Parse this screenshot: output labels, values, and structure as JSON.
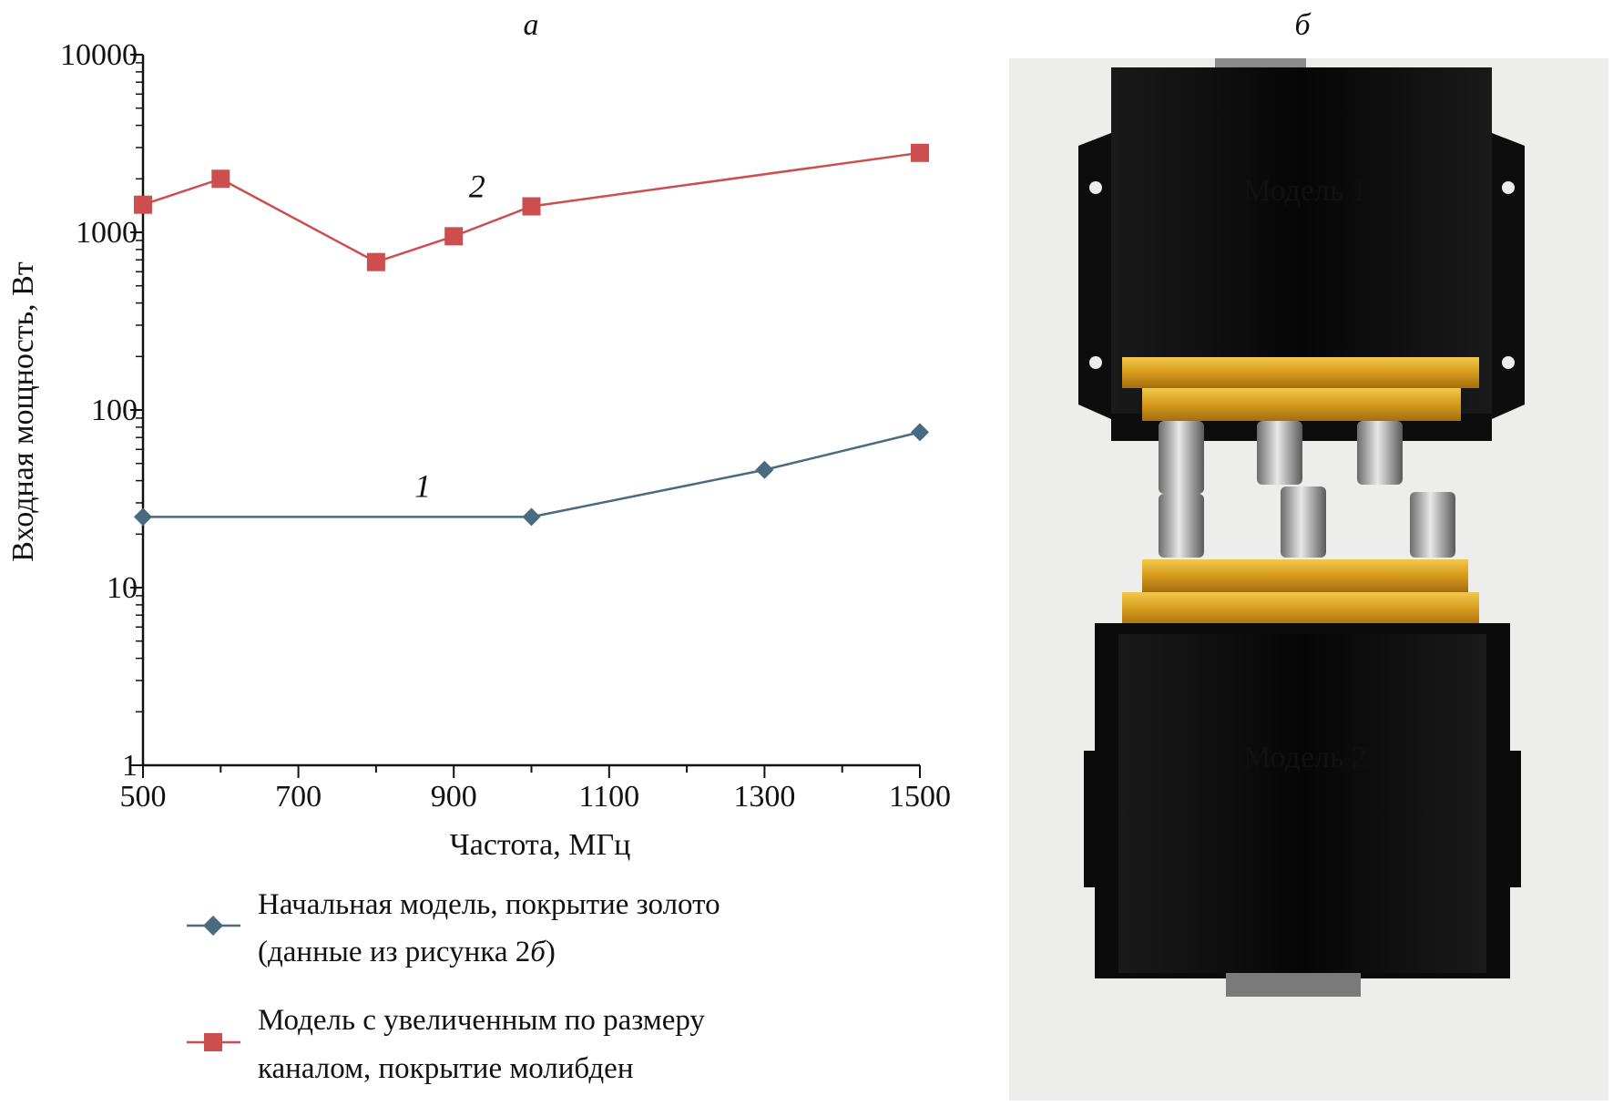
{
  "panels": {
    "left_label": "а",
    "right_label": "б"
  },
  "chart_data": {
    "type": "line",
    "x_scale": "linear",
    "y_scale": "log",
    "xlabel": "Частота, МГц",
    "ylabel": "Входная мощность, Вт",
    "xlim": [
      500,
      1500
    ],
    "ylim": [
      1,
      10000
    ],
    "x_ticks": [
      500,
      700,
      900,
      1100,
      1300,
      1500
    ],
    "x_tick_labels": [
      "500",
      "700",
      "900",
      "1100",
      "1300",
      "1500"
    ],
    "y_ticks": [
      1,
      10,
      100,
      1000,
      10000
    ],
    "y_tick_labels": [
      "1",
      "10",
      "100",
      "1000",
      "10000"
    ],
    "grid": false,
    "legend_position": "bottom",
    "series": [
      {
        "name": "Начальная модель, покрытие золото (данные из рисунка 2б)",
        "legend_lines": [
          "Начальная модель, покрытие золото",
          "(данные из рисунка 2",
          "б",
          ")"
        ],
        "curve_label": "1",
        "marker": "diamond",
        "color": "#4a6b7f",
        "x": [
          500,
          1000,
          1300,
          1500
        ],
        "y": [
          25,
          25,
          46,
          75
        ]
      },
      {
        "name": "Модель с увеличенным по размеру каналом, покрытие молибден",
        "legend_lines": [
          "Модель с увеличенным по размеру",
          "каналом, покрытие молибден"
        ],
        "curve_label": "2",
        "marker": "square",
        "color": "#cc4e4e",
        "x": [
          500,
          600,
          800,
          900,
          1000,
          1500
        ],
        "y": [
          1430,
          2000,
          680,
          950,
          1400,
          2800
        ]
      }
    ]
  },
  "photo": {
    "label_top": "Модель 1",
    "label_bottom": "Модель 2"
  }
}
